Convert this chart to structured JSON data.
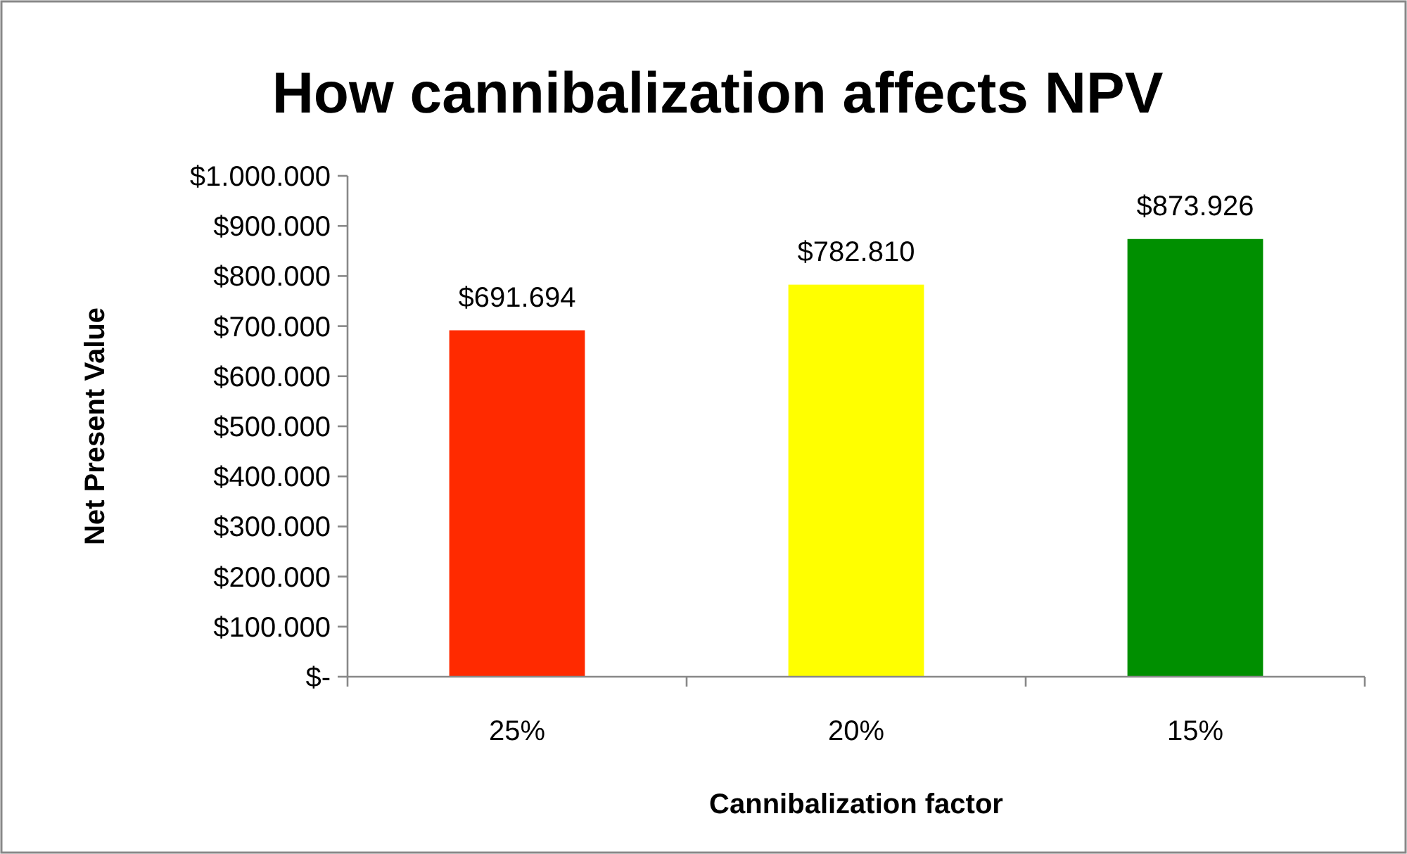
{
  "chart_data": {
    "type": "bar",
    "title": "How cannibalization affects NPV",
    "xlabel": "Cannibalization factor",
    "ylabel": "Net Present Value",
    "categories": [
      "25%",
      "20%",
      "15%"
    ],
    "values": [
      691694,
      782810,
      873926
    ],
    "colors": [
      "#ff2a00",
      "#ffff00",
      "#008f00"
    ],
    "value_labels": [
      "$691.694",
      "$782.810",
      "$873.926"
    ],
    "ylim": [
      0,
      1000000
    ],
    "yticks": [
      {
        "value": 0,
        "label": "$-"
      },
      {
        "value": 100000,
        "label": "$100.000"
      },
      {
        "value": 200000,
        "label": "$200.000"
      },
      {
        "value": 300000,
        "label": "$300.000"
      },
      {
        "value": 400000,
        "label": "$400.000"
      },
      {
        "value": 500000,
        "label": "$500.000"
      },
      {
        "value": 600000,
        "label": "$600.000"
      },
      {
        "value": 700000,
        "label": "$700.000"
      },
      {
        "value": 800000,
        "label": "$800.000"
      },
      {
        "value": 900000,
        "label": "$900.000"
      },
      {
        "value": 1000000,
        "label": "$1.000.000"
      }
    ]
  }
}
